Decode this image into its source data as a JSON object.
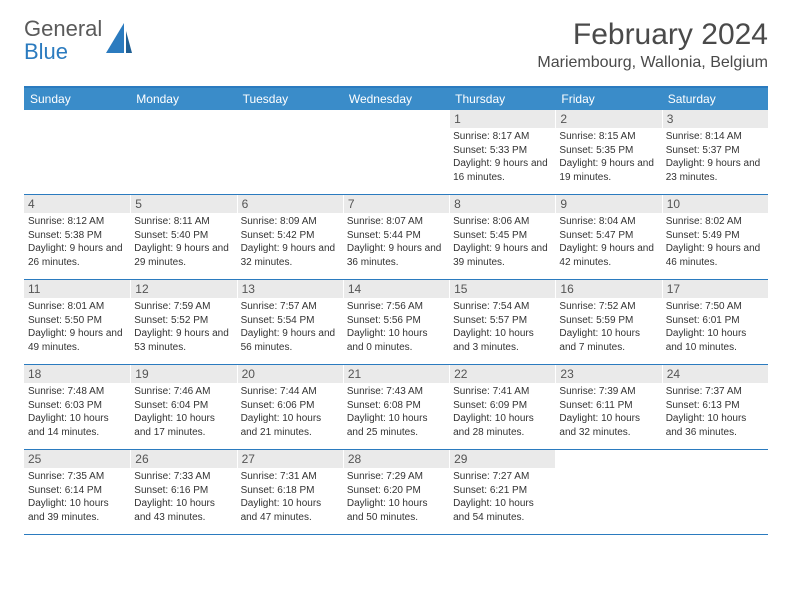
{
  "brand": {
    "text_gray": "General",
    "text_blue": "Blue"
  },
  "title": "February 2024",
  "location": "Mariembourg, Wallonia, Belgium",
  "colors": {
    "header_bar": "#3a8cc9",
    "accent_line": "#2b7bbf",
    "daynum_bg": "#eaeaea",
    "logo_gray": "#5a5a5a",
    "logo_blue": "#2b7bbf"
  },
  "weekdays": [
    "Sunday",
    "Monday",
    "Tuesday",
    "Wednesday",
    "Thursday",
    "Friday",
    "Saturday"
  ],
  "weeks": [
    [
      null,
      null,
      null,
      null,
      {
        "n": "1",
        "sr": "8:17 AM",
        "ss": "5:33 PM",
        "dl": "9 hours and 16 minutes."
      },
      {
        "n": "2",
        "sr": "8:15 AM",
        "ss": "5:35 PM",
        "dl": "9 hours and 19 minutes."
      },
      {
        "n": "3",
        "sr": "8:14 AM",
        "ss": "5:37 PM",
        "dl": "9 hours and 23 minutes."
      }
    ],
    [
      {
        "n": "4",
        "sr": "8:12 AM",
        "ss": "5:38 PM",
        "dl": "9 hours and 26 minutes."
      },
      {
        "n": "5",
        "sr": "8:11 AM",
        "ss": "5:40 PM",
        "dl": "9 hours and 29 minutes."
      },
      {
        "n": "6",
        "sr": "8:09 AM",
        "ss": "5:42 PM",
        "dl": "9 hours and 32 minutes."
      },
      {
        "n": "7",
        "sr": "8:07 AM",
        "ss": "5:44 PM",
        "dl": "9 hours and 36 minutes."
      },
      {
        "n": "8",
        "sr": "8:06 AM",
        "ss": "5:45 PM",
        "dl": "9 hours and 39 minutes."
      },
      {
        "n": "9",
        "sr": "8:04 AM",
        "ss": "5:47 PM",
        "dl": "9 hours and 42 minutes."
      },
      {
        "n": "10",
        "sr": "8:02 AM",
        "ss": "5:49 PM",
        "dl": "9 hours and 46 minutes."
      }
    ],
    [
      {
        "n": "11",
        "sr": "8:01 AM",
        "ss": "5:50 PM",
        "dl": "9 hours and 49 minutes."
      },
      {
        "n": "12",
        "sr": "7:59 AM",
        "ss": "5:52 PM",
        "dl": "9 hours and 53 minutes."
      },
      {
        "n": "13",
        "sr": "7:57 AM",
        "ss": "5:54 PM",
        "dl": "9 hours and 56 minutes."
      },
      {
        "n": "14",
        "sr": "7:56 AM",
        "ss": "5:56 PM",
        "dl": "10 hours and 0 minutes."
      },
      {
        "n": "15",
        "sr": "7:54 AM",
        "ss": "5:57 PM",
        "dl": "10 hours and 3 minutes."
      },
      {
        "n": "16",
        "sr": "7:52 AM",
        "ss": "5:59 PM",
        "dl": "10 hours and 7 minutes."
      },
      {
        "n": "17",
        "sr": "7:50 AM",
        "ss": "6:01 PM",
        "dl": "10 hours and 10 minutes."
      }
    ],
    [
      {
        "n": "18",
        "sr": "7:48 AM",
        "ss": "6:03 PM",
        "dl": "10 hours and 14 minutes."
      },
      {
        "n": "19",
        "sr": "7:46 AM",
        "ss": "6:04 PM",
        "dl": "10 hours and 17 minutes."
      },
      {
        "n": "20",
        "sr": "7:44 AM",
        "ss": "6:06 PM",
        "dl": "10 hours and 21 minutes."
      },
      {
        "n": "21",
        "sr": "7:43 AM",
        "ss": "6:08 PM",
        "dl": "10 hours and 25 minutes."
      },
      {
        "n": "22",
        "sr": "7:41 AM",
        "ss": "6:09 PM",
        "dl": "10 hours and 28 minutes."
      },
      {
        "n": "23",
        "sr": "7:39 AM",
        "ss": "6:11 PM",
        "dl": "10 hours and 32 minutes."
      },
      {
        "n": "24",
        "sr": "7:37 AM",
        "ss": "6:13 PM",
        "dl": "10 hours and 36 minutes."
      }
    ],
    [
      {
        "n": "25",
        "sr": "7:35 AM",
        "ss": "6:14 PM",
        "dl": "10 hours and 39 minutes."
      },
      {
        "n": "26",
        "sr": "7:33 AM",
        "ss": "6:16 PM",
        "dl": "10 hours and 43 minutes."
      },
      {
        "n": "27",
        "sr": "7:31 AM",
        "ss": "6:18 PM",
        "dl": "10 hours and 47 minutes."
      },
      {
        "n": "28",
        "sr": "7:29 AM",
        "ss": "6:20 PM",
        "dl": "10 hours and 50 minutes."
      },
      {
        "n": "29",
        "sr": "7:27 AM",
        "ss": "6:21 PM",
        "dl": "10 hours and 54 minutes."
      },
      null,
      null
    ]
  ],
  "labels": {
    "sunrise_prefix": "Sunrise: ",
    "sunset_prefix": "Sunset: ",
    "daylight_prefix": "Daylight: "
  }
}
